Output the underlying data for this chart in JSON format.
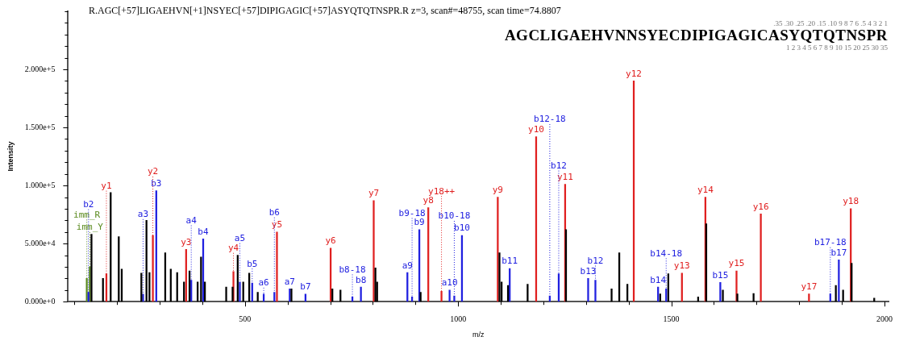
{
  "chart_data": {
    "type": "bar",
    "title": "R.AGC[+57]LIGAEHVN[+1]NSYEC[+57]DIPIGAGIC[+57]ASYQTQTNSPR.R z=3, scan#=48755, scan time=74.8807",
    "xlabel": "m/z",
    "ylabel": "Intensity",
    "xlim": [
      85,
      2010
    ],
    "xticks": [
      {
        "value": 100,
        "label": null
      },
      {
        "value": 200,
        "label": null
      },
      {
        "value": 300,
        "label": null
      },
      {
        "value": 400,
        "label": null
      },
      500,
      {
        "value": 600,
        "label": null
      },
      {
        "value": 700,
        "label": null
      },
      {
        "value": 800,
        "label": null
      },
      {
        "value": 900,
        "label": null
      },
      1000,
      {
        "value": 1100,
        "label": null
      },
      {
        "value": 1200,
        "label": null
      },
      {
        "value": 1300,
        "label": null
      },
      {
        "value": 1400,
        "label": null
      },
      1500,
      {
        "value": 1600,
        "label": null
      },
      {
        "value": 1700,
        "label": null
      },
      {
        "value": 1800,
        "label": null
      },
      {
        "value": 1900,
        "label": null
      },
      2000
    ],
    "ylim": [
      0,
      250000
    ],
    "yticks": [
      {
        "value": 0,
        "label": "0.000e+0"
      },
      {
        "value": 10000,
        "label": null
      },
      {
        "value": 20000,
        "label": null
      },
      {
        "value": 30000,
        "label": null
      },
      {
        "value": 40000,
        "label": null
      },
      {
        "value": 50000,
        "label": "5.000e+4"
      },
      {
        "value": 60000,
        "label": null
      },
      {
        "value": 70000,
        "label": null
      },
      {
        "value": 80000,
        "label": null
      },
      {
        "value": 90000,
        "label": null
      },
      {
        "value": 100000,
        "label": "1.000e+5"
      },
      {
        "value": 110000,
        "label": null
      },
      {
        "value": 120000,
        "label": null
      },
      {
        "value": 130000,
        "label": null
      },
      {
        "value": 140000,
        "label": null
      },
      {
        "value": 150000,
        "label": "1.500e+5"
      },
      {
        "value": 160000,
        "label": null
      },
      {
        "value": 170000,
        "label": null
      },
      {
        "value": 180000,
        "label": null
      },
      {
        "value": 190000,
        "label": null
      },
      {
        "value": 200000,
        "label": "2.000e+5"
      },
      {
        "value": 210000,
        "label": null
      },
      {
        "value": 220000,
        "label": null
      },
      {
        "value": 230000,
        "label": null
      },
      {
        "value": 240000,
        "label": null
      },
      {
        "value": 250000,
        "label": null
      }
    ],
    "grid": false,
    "legend": false,
    "series": [
      {
        "color": "#000000",
        "x": [
          140,
          167,
          185,
          204,
          211,
          257,
          269,
          276,
          313,
          326,
          341,
          357,
          370,
          389,
          397,
          406,
          456,
          471,
          483,
          496,
          510,
          530,
          609,
          705,
          724,
          806,
          810,
          912,
          1097,
          1102,
          1117,
          1163,
          1253,
          1360,
          1378,
          1397,
          1474,
          1493,
          1563,
          1582,
          1621,
          1655,
          1693,
          1886,
          1903,
          1923,
          1976
        ],
        "values": [
          58000,
          20000,
          94000,
          56000,
          28000,
          24500,
          70000,
          25000,
          42000,
          28000,
          25000,
          17000,
          26500,
          17000,
          38500,
          17000,
          12500,
          12500,
          40000,
          17000,
          24500,
          8000,
          11000,
          11000,
          10000,
          29000,
          17000,
          8000,
          42000,
          17000,
          14000,
          15000,
          62000,
          11000,
          42000,
          15000,
          6600,
          24000,
          4000,
          67000,
          10000,
          6600,
          7000,
          14000,
          10000,
          33000,
          3000
        ]
      },
      {
        "color": "#e02020",
        "x": [
          175,
          284,
          362,
          473,
          575,
          701,
          802,
          930,
          961,
          1093,
          1183,
          1251,
          1412,
          1525,
          1580,
          1653,
          1710,
          1823,
          1921
        ],
        "values": [
          24000,
          57000,
          45000,
          26000,
          60000,
          46000,
          87000,
          81000,
          9000,
          90000,
          142000,
          101000,
          190000,
          24500,
          90000,
          26500,
          75500,
          6600,
          80000
        ]
      },
      {
        "color": "#2020e0",
        "x": [
          133,
          261,
          292,
          374,
          402,
          488,
          517,
          544,
          569,
          605,
          642,
          752,
          772,
          881,
          892,
          909,
          980,
          991,
          1009,
          1121,
          1215,
          1236,
          1305,
          1322,
          1469,
          1488,
          1615,
          1873,
          1893
        ],
        "values": [
          8000,
          6500,
          95500,
          18500,
          54000,
          17000,
          16000,
          6500,
          8000,
          11000,
          6500,
          4000,
          12500,
          25000,
          4000,
          62000,
          10000,
          5000,
          57000,
          28500,
          5000,
          24000,
          20000,
          18500,
          12500,
          11000,
          16500,
          6600,
          36000
        ]
      },
      {
        "color": "#5a8a1e",
        "x": [
          129,
          136
        ],
        "values": [
          20000,
          30000
        ]
      }
    ],
    "annotations": [
      "AGCLIGAEHVNNSYECDIPIGAGICASYQTQTNSPR",
      ".35 .30 .25 .20 .15 .10 9 8 7 6 .5 4 3 2 1",
      "1 2 3 4 5 6 7 8 9 10 15 20 25 30 35",
      {
        "text": "imm_R",
        "x": 129,
        "y": 20000
      },
      {
        "text": "imm_Y",
        "x": 136,
        "y": 30000
      },
      {
        "text": "b2",
        "x": 133,
        "y": 8000
      },
      {
        "text": "y1",
        "x": 175,
        "y": 24000
      },
      {
        "text": "a3",
        "x": 261,
        "y": 6500
      },
      {
        "text": "y2",
        "x": 284,
        "y": 57000
      },
      {
        "text": "b3",
        "x": 292,
        "y": 95500
      },
      {
        "text": "y3",
        "x": 362,
        "y": 45000
      },
      {
        "text": "a4",
        "x": 374,
        "y": 18500
      },
      {
        "text": "b4",
        "x": 402,
        "y": 54000
      },
      {
        "text": "y4",
        "x": 473,
        "y": 26000
      },
      {
        "text": "a5",
        "x": 488,
        "y": 17000
      },
      {
        "text": "b5",
        "x": 517,
        "y": 16000
      },
      {
        "text": "a6",
        "x": 544,
        "y": 6500
      },
      {
        "text": "b6",
        "x": 569,
        "y": 8000
      },
      {
        "text": "y5",
        "x": 575,
        "y": 60000
      },
      {
        "text": "a7",
        "x": 605,
        "y": 11000
      },
      {
        "text": "b7",
        "x": 642,
        "y": 6500
      },
      {
        "text": "y6",
        "x": 701,
        "y": 46000
      },
      {
        "text": "b8-18",
        "x": 752,
        "y": 4000
      },
      {
        "text": "b8",
        "x": 772,
        "y": 12500
      },
      {
        "text": "y7",
        "x": 802,
        "y": 87000
      },
      {
        "text": "a9",
        "x": 881,
        "y": 25000
      },
      {
        "text": "b9-18",
        "x": 892,
        "y": 4000
      },
      {
        "text": "b9",
        "x": 909,
        "y": 62000
      },
      {
        "text": "y8",
        "x": 930,
        "y": 81000
      },
      {
        "text": "y18++",
        "x": 961,
        "y": 9000
      },
      {
        "text": "a10",
        "x": 980,
        "y": 10000
      },
      {
        "text": "b10-18",
        "x": 991,
        "y": 5000
      },
      {
        "text": "b10",
        "x": 1009,
        "y": 57000
      },
      {
        "text": "y9",
        "x": 1093,
        "y": 90000
      },
      {
        "text": "b11",
        "x": 1121,
        "y": 28500
      },
      {
        "text": "y10",
        "x": 1183,
        "y": 142000
      },
      {
        "text": "b12-18",
        "x": 1215,
        "y": 5000
      },
      {
        "text": "b12",
        "x": 1236,
        "y": 24000
      },
      {
        "text": "y11",
        "x": 1251,
        "y": 101000
      },
      {
        "text": "b13",
        "x": 1305,
        "y": 20000
      },
      {
        "text": "b12",
        "x": 1322,
        "y": 18500
      },
      {
        "text": "y12",
        "x": 1412,
        "y": 190000
      },
      {
        "text": "b14",
        "x": 1469,
        "y": 12500
      },
      {
        "text": "b14-18",
        "x": 1488,
        "y": 11000
      },
      {
        "text": "y13",
        "x": 1525,
        "y": 24500
      },
      {
        "text": "y14",
        "x": 1580,
        "y": 90000
      },
      {
        "text": "b15",
        "x": 1615,
        "y": 16500
      },
      {
        "text": "y15",
        "x": 1653,
        "y": 26500
      },
      {
        "text": "y16",
        "x": 1710,
        "y": 75500
      },
      {
        "text": "y17",
        "x": 1823,
        "y": 6600
      },
      {
        "text": "b17-18",
        "x": 1873,
        "y": 6600
      },
      {
        "text": "b17",
        "x": 1893,
        "y": 36000
      },
      {
        "text": "y18",
        "x": 1921,
        "y": 80000
      }
    ]
  }
}
